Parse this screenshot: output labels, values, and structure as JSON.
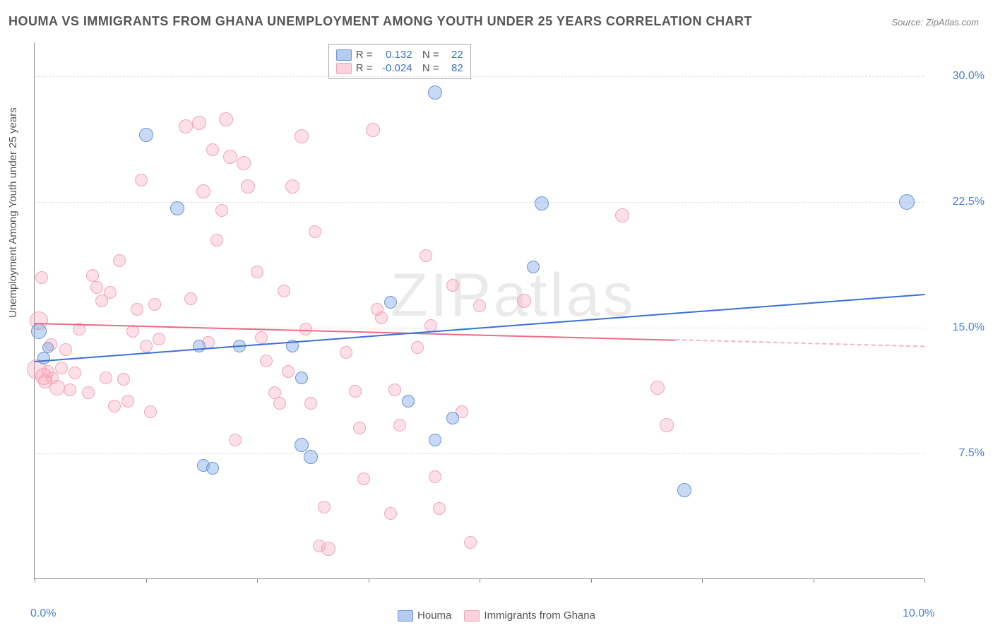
{
  "title": "HOUMA VS IMMIGRANTS FROM GHANA UNEMPLOYMENT AMONG YOUTH UNDER 25 YEARS CORRELATION CHART",
  "source": "Source: ZipAtlas.com",
  "y_axis_label": "Unemployment Among Youth under 25 years",
  "watermark": "ZIPatlas",
  "chart": {
    "type": "scatter",
    "xlim": [
      0,
      10
    ],
    "ylim": [
      0,
      32
    ],
    "x_ticks": [
      0,
      1.25,
      2.5,
      3.75,
      5,
      6.25,
      7.5,
      8.75,
      10
    ],
    "x_tick_labels": {
      "0": "0.0%",
      "10": "10.0%"
    },
    "y_ticks": [
      7.5,
      15.0,
      22.5,
      30.0
    ],
    "y_tick_labels": [
      "7.5%",
      "15.0%",
      "22.5%",
      "30.0%"
    ],
    "background": "#ffffff",
    "grid_color": "#dddddd",
    "axis_color": "#888888",
    "tick_label_color": "#4a7fd8",
    "dot_radius_base": 10,
    "series": [
      {
        "name": "Houma",
        "color_fill": "rgba(130,170,230,0.45)",
        "color_stroke": "#6a95d8",
        "trend_color": "#3b6fd6",
        "correlation_r": "0.132",
        "n": "22",
        "trend": {
          "x1": 0,
          "y1": 13.0,
          "x2": 10,
          "y2": 17.0
        },
        "points": [
          [
            0.05,
            14.8,
            11
          ],
          [
            0.1,
            13.2,
            9
          ],
          [
            0.15,
            13.8,
            8
          ],
          [
            1.25,
            26.5,
            10
          ],
          [
            1.6,
            22.1,
            10
          ],
          [
            1.85,
            13.9,
            9
          ],
          [
            1.9,
            6.8,
            9
          ],
          [
            2.0,
            6.6,
            9
          ],
          [
            2.3,
            13.9,
            9
          ],
          [
            2.9,
            13.9,
            9
          ],
          [
            3.0,
            12.0,
            9
          ],
          [
            3.0,
            8.0,
            10
          ],
          [
            3.1,
            7.3,
            10
          ],
          [
            4.0,
            16.5,
            9
          ],
          [
            4.2,
            10.6,
            9
          ],
          [
            4.5,
            8.3,
            9
          ],
          [
            4.5,
            29.0,
            10
          ],
          [
            4.7,
            9.6,
            9
          ],
          [
            5.6,
            18.6,
            9
          ],
          [
            5.7,
            22.4,
            10
          ],
          [
            7.3,
            5.3,
            10
          ],
          [
            9.8,
            22.5,
            11
          ]
        ]
      },
      {
        "name": "Immigrants from Ghana",
        "color_fill": "rgba(248,165,185,0.35)",
        "color_stroke": "#f3a5b9",
        "trend_color": "#ec6b8a",
        "trend_dash_color": "#f7b3c3",
        "correlation_r": "-0.024",
        "n": "82",
        "trend": {
          "x1": 0,
          "y1": 15.3,
          "x2": 7.2,
          "y2": 14.3
        },
        "trend_dash": {
          "x1": 7.2,
          "y1": 14.3,
          "x2": 10,
          "y2": 13.9
        },
        "points": [
          [
            0.02,
            12.5,
            14
          ],
          [
            0.05,
            15.4,
            13
          ],
          [
            0.08,
            18.0,
            9
          ],
          [
            0.1,
            12.1,
            12
          ],
          [
            0.12,
            11.8,
            10
          ],
          [
            0.15,
            12.4,
            9
          ],
          [
            0.18,
            14.0,
            9
          ],
          [
            0.2,
            12.0,
            9
          ],
          [
            0.25,
            11.4,
            11
          ],
          [
            0.3,
            12.6,
            9
          ],
          [
            0.35,
            13.7,
            9
          ],
          [
            0.4,
            11.3,
            9
          ],
          [
            0.45,
            12.3,
            9
          ],
          [
            0.5,
            14.9,
            9
          ],
          [
            0.6,
            11.1,
            9
          ],
          [
            0.65,
            18.1,
            9
          ],
          [
            0.7,
            17.4,
            9
          ],
          [
            0.75,
            16.6,
            9
          ],
          [
            0.8,
            12.0,
            9
          ],
          [
            0.85,
            17.1,
            9
          ],
          [
            0.9,
            10.3,
            9
          ],
          [
            0.95,
            19.0,
            9
          ],
          [
            1.0,
            11.9,
            9
          ],
          [
            1.05,
            10.6,
            9
          ],
          [
            1.1,
            14.8,
            9
          ],
          [
            1.15,
            16.1,
            9
          ],
          [
            1.2,
            23.8,
            9
          ],
          [
            1.25,
            13.9,
            9
          ],
          [
            1.3,
            10.0,
            9
          ],
          [
            1.35,
            16.4,
            9
          ],
          [
            1.4,
            14.3,
            9
          ],
          [
            1.7,
            27.0,
            10
          ],
          [
            1.75,
            16.7,
            9
          ],
          [
            1.85,
            27.2,
            10
          ],
          [
            1.9,
            23.1,
            10
          ],
          [
            1.95,
            14.1,
            9
          ],
          [
            2.0,
            25.6,
            9
          ],
          [
            2.05,
            20.2,
            9
          ],
          [
            2.1,
            22.0,
            9
          ],
          [
            2.15,
            27.4,
            10
          ],
          [
            2.2,
            25.2,
            10
          ],
          [
            2.25,
            8.3,
            9
          ],
          [
            2.35,
            24.8,
            10
          ],
          [
            2.4,
            23.4,
            10
          ],
          [
            2.5,
            18.3,
            9
          ],
          [
            2.55,
            14.4,
            9
          ],
          [
            2.6,
            13.0,
            9
          ],
          [
            2.7,
            11.1,
            9
          ],
          [
            2.75,
            10.5,
            9
          ],
          [
            2.8,
            17.2,
            9
          ],
          [
            2.85,
            12.4,
            9
          ],
          [
            2.9,
            23.4,
            10
          ],
          [
            3.0,
            26.4,
            10
          ],
          [
            3.05,
            14.9,
            9
          ],
          [
            3.1,
            10.5,
            9
          ],
          [
            3.15,
            20.7,
            9
          ],
          [
            3.2,
            2.0,
            9
          ],
          [
            3.25,
            4.3,
            9
          ],
          [
            3.3,
            1.8,
            10
          ],
          [
            3.5,
            13.5,
            9
          ],
          [
            3.6,
            11.2,
            9
          ],
          [
            3.65,
            9.0,
            9
          ],
          [
            3.7,
            6.0,
            9
          ],
          [
            3.8,
            26.8,
            10
          ],
          [
            3.85,
            16.1,
            9
          ],
          [
            3.9,
            15.6,
            9
          ],
          [
            4.0,
            3.9,
            9
          ],
          [
            4.05,
            11.3,
            9
          ],
          [
            4.1,
            9.2,
            9
          ],
          [
            4.3,
            13.8,
            9
          ],
          [
            4.4,
            19.3,
            9
          ],
          [
            4.45,
            15.1,
            9
          ],
          [
            4.5,
            6.1,
            9
          ],
          [
            4.55,
            4.2,
            9
          ],
          [
            4.7,
            17.5,
            9
          ],
          [
            4.8,
            10.0,
            9
          ],
          [
            4.9,
            2.2,
            9
          ],
          [
            5.0,
            16.3,
            9
          ],
          [
            5.5,
            16.6,
            10
          ],
          [
            6.6,
            21.7,
            10
          ],
          [
            7.0,
            11.4,
            10
          ],
          [
            7.1,
            9.2,
            10
          ]
        ]
      }
    ],
    "legend_bottom": [
      {
        "swatch": "blue",
        "label": "Houma"
      },
      {
        "swatch": "pink",
        "label": "Immigrants from Ghana"
      }
    ]
  }
}
